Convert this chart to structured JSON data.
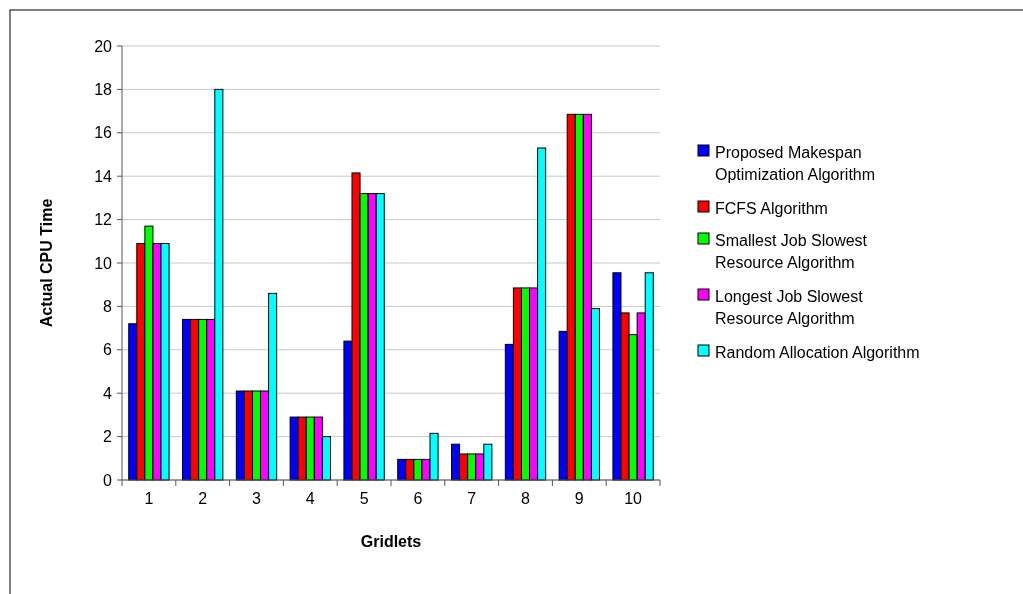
{
  "chart_data": {
    "type": "bar",
    "xlabel": "Gridlets",
    "ylabel": "Actual CPU Time",
    "categories": [
      "1",
      "2",
      "3",
      "4",
      "5",
      "6",
      "7",
      "8",
      "9",
      "10"
    ],
    "series": [
      {
        "name": "Proposed Makespan Optimization Algorithm",
        "color": "#0000ff",
        "values": [
          7.2,
          7.4,
          4.1,
          2.9,
          6.4,
          0.95,
          1.65,
          6.25,
          6.85,
          9.55
        ]
      },
      {
        "name": "FCFS Algorithm",
        "color": "#ff0000",
        "values": [
          10.9,
          7.4,
          4.1,
          2.9,
          14.15,
          0.95,
          1.2,
          8.85,
          16.85,
          7.7
        ]
      },
      {
        "name": "Smallest Job Slowest Resource Algorithm",
        "color": "#00ff00",
        "values": [
          11.7,
          7.4,
          4.1,
          2.9,
          13.2,
          0.95,
          1.2,
          8.85,
          16.85,
          6.7
        ]
      },
      {
        "name": "Longest Job Slowest Resource Algorithm",
        "color": "#ff00ff",
        "values": [
          10.9,
          7.4,
          4.1,
          2.9,
          13.2,
          0.95,
          1.2,
          8.85,
          16.85,
          7.7
        ]
      },
      {
        "name": "Random Allocation Algorithm",
        "color": "#00ffff",
        "values": [
          10.9,
          18,
          8.6,
          2.0,
          13.2,
          2.15,
          1.65,
          15.3,
          7.9,
          9.55
        ]
      }
    ],
    "ylim": [
      0,
      20
    ],
    "yticks": [
      0,
      2,
      4,
      6,
      8,
      10,
      12,
      14,
      16,
      18,
      20
    ],
    "grid": "y",
    "legend": "right"
  }
}
